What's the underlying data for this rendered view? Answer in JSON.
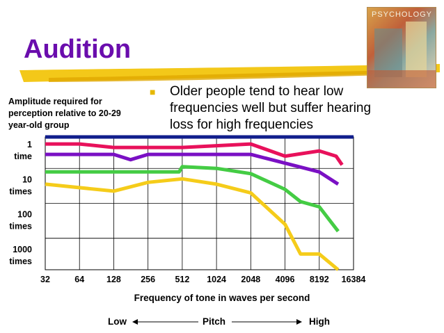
{
  "slide": {
    "title": "Audition",
    "bullet_text": "Older people tend to hear low frequencies well but suffer hearing loss for high frequencies",
    "book_cover_text": "PSYCHOLOGY"
  },
  "colors": {
    "title": "#6a0dad",
    "swoosh": "#f2c200",
    "bullet": "#e6b800",
    "series": [
      "#101e8c",
      "#e8115b",
      "#7a10c4",
      "#44cc44",
      "#f5cc1a"
    ]
  },
  "chart_data": {
    "type": "line",
    "title": "",
    "ylabel": "Amplitude required for perception relative to 20-29 year-old group",
    "xlabel": "Frequency of tone in waves per second",
    "x_ticks": [
      "32",
      "64",
      "128",
      "256",
      "512",
      "1024",
      "2048",
      "4096",
      "8192",
      "16384"
    ],
    "y_ticks": [
      {
        "value": 0,
        "label": [
          "1",
          "time"
        ]
      },
      {
        "value": 1,
        "label": [
          "10",
          "times"
        ]
      },
      {
        "value": 2,
        "label": [
          "100",
          "times"
        ]
      },
      {
        "value": 3,
        "label": [
          "1000",
          "times"
        ]
      }
    ],
    "y_scale": "log10 amplitude (0 = 1 time, 3 = 1000 times)",
    "xlim": [
      32,
      16384
    ],
    "ylim": [
      -0.4,
      3.4
    ],
    "grid": true,
    "series": [
      {
        "x": [
          32,
          128,
          2048,
          16384
        ],
        "y": [
          -0.4,
          -0.4,
          -0.4,
          -0.4
        ]
      },
      {
        "x": [
          32,
          64,
          128,
          512,
          2048,
          4096,
          8192,
          11500,
          13000
        ],
        "y": [
          -0.2,
          -0.2,
          -0.1,
          -0.1,
          -0.2,
          0.15,
          0.0,
          0.15,
          0.4
        ]
      },
      {
        "x": [
          32,
          128,
          180,
          256,
          512,
          2048,
          4096,
          8192,
          12000
        ],
        "y": [
          0.1,
          0.1,
          0.25,
          0.1,
          0.1,
          0.1,
          0.35,
          0.6,
          0.95
        ]
      },
      {
        "x": [
          32,
          64,
          128,
          256,
          480,
          512,
          1024,
          2048,
          4096,
          5600,
          8192,
          12000
        ],
        "y": [
          0.6,
          0.6,
          0.6,
          0.6,
          0.6,
          0.45,
          0.5,
          0.65,
          1.1,
          1.45,
          1.6,
          2.3
        ]
      },
      {
        "x": [
          32,
          128,
          256,
          512,
          1024,
          2048,
          4096,
          5600,
          8192,
          12000
        ],
        "y": [
          0.95,
          1.15,
          0.9,
          0.8,
          0.95,
          1.2,
          2.1,
          2.95,
          2.95,
          4.2
        ]
      }
    ]
  },
  "pitch": {
    "low": "Low",
    "center": "Pitch",
    "high": "High"
  }
}
